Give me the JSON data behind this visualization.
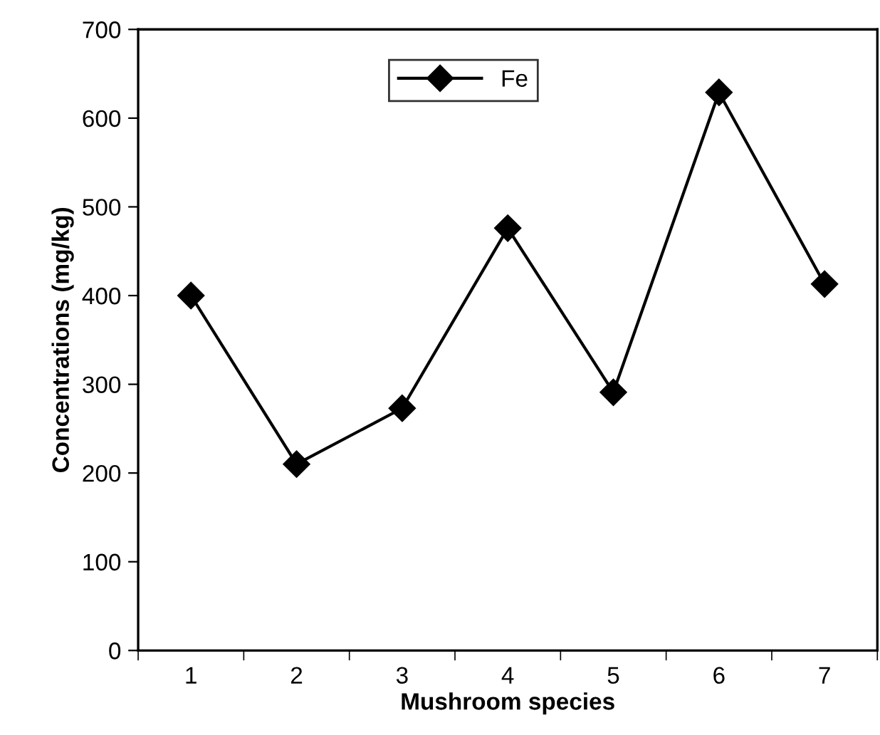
{
  "chart_data": {
    "type": "line",
    "xlabel": "Mushroom species",
    "ylabel": "Concentrations (mg/kg)",
    "categories": [
      "1",
      "2",
      "3",
      "4",
      "5",
      "6",
      "7"
    ],
    "series": [
      {
        "name": "Fe",
        "color": "#000000",
        "values": [
          400,
          210,
          273,
          476,
          291,
          629,
          413
        ]
      }
    ],
    "ylim": [
      0,
      700
    ],
    "yticks": [
      0,
      100,
      200,
      300,
      400,
      500,
      600,
      700
    ],
    "marker": "diamond",
    "line_style": "solid",
    "legend": "top",
    "grid": false
  }
}
